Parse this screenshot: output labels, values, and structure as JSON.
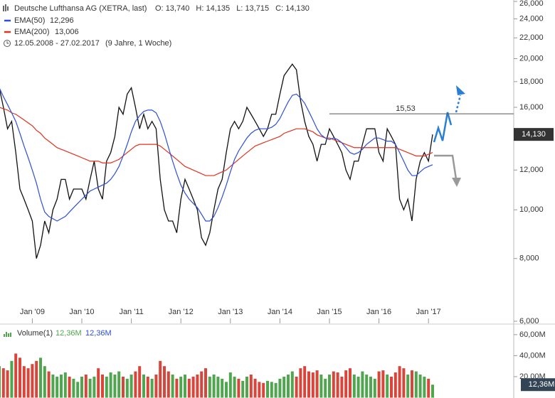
{
  "chart_data": {
    "type": "line",
    "title": "Deutsche Lufthansa AG (XETRA, last)",
    "ohlc": [
      {
        "name": "O:",
        "value": 13.74,
        "label": "13,740"
      },
      {
        "name": "H:",
        "value": 14.135,
        "label": "14,135"
      },
      {
        "name": "L:",
        "value": 13.715,
        "label": "13,715"
      },
      {
        "name": "C:",
        "value": 14.13,
        "label": "14,130"
      }
    ],
    "period": "12.05.2008 - 27.02.2017",
    "period_note": "(9 Jahre, 1 Woche)",
    "log_scale": true,
    "ylim": [
      6,
      26
    ],
    "yticks": [
      {
        "value": 6,
        "label": "6,000"
      },
      {
        "value": 8,
        "label": "8,000"
      },
      {
        "value": 10,
        "label": "10,000"
      },
      {
        "value": 12,
        "label": "12,000"
      },
      {
        "value": 14,
        "label": "14,000"
      },
      {
        "value": 16,
        "label": "16,000"
      },
      {
        "value": 18,
        "label": "18,000"
      },
      {
        "value": 20,
        "label": "20,000"
      },
      {
        "value": 22,
        "label": "22,000"
      },
      {
        "value": 24,
        "label": "24,000"
      },
      {
        "value": 26,
        "label": "26,000"
      }
    ],
    "categories": [
      null,
      null,
      null,
      null,
      null,
      null,
      null,
      null,
      "Jan '09",
      null,
      null,
      null,
      null,
      null,
      null,
      null,
      null,
      null,
      null,
      null,
      "Jan '10",
      null,
      null,
      null,
      null,
      null,
      null,
      null,
      null,
      null,
      null,
      null,
      "Jan '11",
      null,
      null,
      null,
      null,
      null,
      null,
      null,
      null,
      null,
      null,
      null,
      "Jan '12",
      null,
      null,
      null,
      null,
      null,
      null,
      null,
      null,
      null,
      null,
      null,
      "Jan '13",
      null,
      null,
      null,
      null,
      null,
      null,
      null,
      null,
      null,
      null,
      null,
      "Jan '14",
      null,
      null,
      null,
      null,
      null,
      null,
      null,
      null,
      null,
      null,
      null,
      "Jan '15",
      null,
      null,
      null,
      null,
      null,
      null,
      null,
      null,
      null,
      null,
      null,
      "Jan '16",
      null,
      null,
      null,
      null,
      null,
      null,
      null,
      null,
      null,
      null,
      null,
      "Jan '17",
      null
    ],
    "series": [
      {
        "name": "Deutsche Lufthansa AG",
        "color": "#111111",
        "values": [
          17.5,
          16,
          14.5,
          15,
          13,
          11,
          10.5,
          10,
          9.5,
          8,
          8.5,
          9.5,
          9,
          10,
          10.5,
          11.5,
          11.5,
          10.5,
          11,
          11,
          11,
          10.5,
          11.5,
          12.5,
          11,
          10.5,
          12.5,
          13,
          14,
          16,
          15.5,
          17,
          17.5,
          16,
          14.5,
          15.5,
          14.5,
          15,
          14.5,
          11.5,
          10,
          9.5,
          9.5,
          9,
          10.5,
          11.5,
          11,
          10.5,
          10,
          8.8,
          8.5,
          9,
          10,
          11,
          11.5,
          13,
          14.5,
          15,
          14.5,
          15,
          16,
          15.5,
          15,
          14.5,
          14,
          14.5,
          15.5,
          15.5,
          17,
          18.5,
          19,
          19.5,
          19,
          16.5,
          15,
          14,
          13.5,
          12.5,
          13.5,
          13.5,
          14.5,
          14,
          13.5,
          13,
          12,
          11.5,
          12.5,
          12.5,
          13.5,
          14.5,
          14.5,
          14.5,
          13,
          12.5,
          14.5,
          14,
          13.5,
          10.5,
          10,
          10.5,
          9.5,
          11.5,
          12.5,
          13,
          12.5,
          14.13
        ]
      },
      {
        "name": "EMA(50)",
        "last_label": "12,296",
        "color": "#2b4fd8",
        "values": [
          17.5,
          16.8,
          16.2,
          15.6,
          15,
          14.2,
          13.4,
          12.7,
          12,
          11.3,
          10.5,
          9.9,
          9.7,
          9.6,
          9.5,
          9.6,
          9.7,
          9.9,
          10.1,
          10.3,
          10.5,
          10.7,
          10.9,
          11,
          11.1,
          11.2,
          11.3,
          11.5,
          11.8,
          12.2,
          12.8,
          13.5,
          14.3,
          15,
          15.4,
          15.7,
          15.8,
          15.8,
          15.6,
          15,
          14.2,
          13.3,
          12.5,
          11.8,
          11.2,
          10.8,
          10.5,
          10.3,
          10.1,
          9.8,
          9.5,
          9.5,
          9.7,
          10.1,
          10.6,
          11.2,
          11.9,
          12.6,
          13.1,
          13.5,
          13.9,
          14.2,
          14.4,
          14.5,
          14.5,
          14.5,
          14.6,
          14.8,
          15.2,
          15.8,
          16.4,
          16.9,
          17,
          16.7,
          16.3,
          15.7,
          15.1,
          14.5,
          14.1,
          13.9,
          13.8,
          13.9,
          13.8,
          13.6,
          13.3,
          13,
          12.9,
          13,
          13.2,
          13.5,
          13.7,
          13.9,
          13.9,
          13.8,
          13.7,
          13.7,
          13.5,
          13,
          12.5,
          12,
          11.7,
          11.7,
          11.9,
          12.1,
          12.2,
          12.296
        ]
      },
      {
        "name": "EMA(200)",
        "last_label": "13,006",
        "color": "#e0321f",
        "values": [
          16,
          15.9,
          15.8,
          15.6,
          15.5,
          15.3,
          15.1,
          14.9,
          14.7,
          14.4,
          14.2,
          13.9,
          13.7,
          13.5,
          13.3,
          13.2,
          13.1,
          13,
          12.9,
          12.8,
          12.7,
          12.6,
          12.5,
          12.5,
          12.5,
          12.4,
          12.4,
          12.4,
          12.5,
          12.6,
          12.8,
          13,
          13.2,
          13.4,
          13.5,
          13.5,
          13.5,
          13.5,
          13.5,
          13.4,
          13.2,
          13,
          12.8,
          12.6,
          12.4,
          12.2,
          12.1,
          12,
          11.9,
          11.8,
          11.7,
          11.7,
          11.7,
          11.8,
          11.9,
          12,
          12.2,
          12.4,
          12.6,
          12.8,
          13,
          13.2,
          13.4,
          13.5,
          13.6,
          13.7,
          13.8,
          13.9,
          14,
          14.2,
          14.3,
          14.4,
          14.5,
          14.5,
          14.5,
          14.4,
          14.3,
          14.1,
          14,
          13.9,
          13.9,
          13.8,
          13.7,
          13.6,
          13.5,
          13.4,
          13.3,
          13.3,
          13.3,
          13.3,
          13.3,
          13.3,
          13.3,
          13.3,
          13.3,
          13.3,
          13.3,
          13.2,
          13.1,
          13,
          12.9,
          12.8,
          12.8,
          12.8,
          12.9,
          13.006
        ]
      }
    ],
    "annotation": {
      "label": "15,53",
      "value": 15.53
    },
    "volume": {
      "name": "Volume(1)",
      "labels": [
        "12,36M",
        "12,36M"
      ],
      "up_color": "#4fa64f",
      "down_color": "#d8453a",
      "ylim": [
        0,
        66000000
      ],
      "yticks": [
        {
          "value": 20000000,
          "label": "20,00M"
        },
        {
          "value": 40000000,
          "label": "40,00M"
        },
        {
          "value": 60000000,
          "label": "60,00M"
        }
      ],
      "values": [
        30000000,
        28000000,
        26000000,
        35000000,
        42000000,
        38000000,
        30000000,
        28000000,
        32000000,
        35000000,
        38000000,
        30000000,
        25000000,
        22000000,
        20000000,
        22000000,
        24000000,
        20000000,
        18000000,
        15000000,
        20000000,
        22000000,
        18000000,
        20000000,
        28000000,
        22000000,
        20000000,
        24000000,
        22000000,
        25000000,
        20000000,
        18000000,
        22000000,
        25000000,
        30000000,
        22000000,
        20000000,
        18000000,
        22000000,
        35000000,
        30000000,
        25000000,
        22000000,
        18000000,
        20000000,
        22000000,
        18000000,
        20000000,
        22000000,
        25000000,
        28000000,
        20000000,
        22000000,
        20000000,
        18000000,
        15000000,
        24000000,
        20000000,
        18000000,
        16000000,
        20000000,
        22000000,
        18000000,
        15000000,
        14000000,
        16000000,
        15000000,
        14000000,
        18000000,
        20000000,
        22000000,
        25000000,
        20000000,
        28000000,
        30000000,
        25000000,
        24000000,
        26000000,
        22000000,
        18000000,
        22000000,
        25000000,
        24000000,
        20000000,
        26000000,
        28000000,
        22000000,
        20000000,
        25000000,
        22000000,
        20000000,
        18000000,
        25000000,
        26000000,
        22000000,
        20000000,
        24000000,
        30000000,
        28000000,
        22000000,
        26000000,
        25000000,
        22000000,
        20000000,
        18000000,
        12360000
      ]
    }
  }
}
